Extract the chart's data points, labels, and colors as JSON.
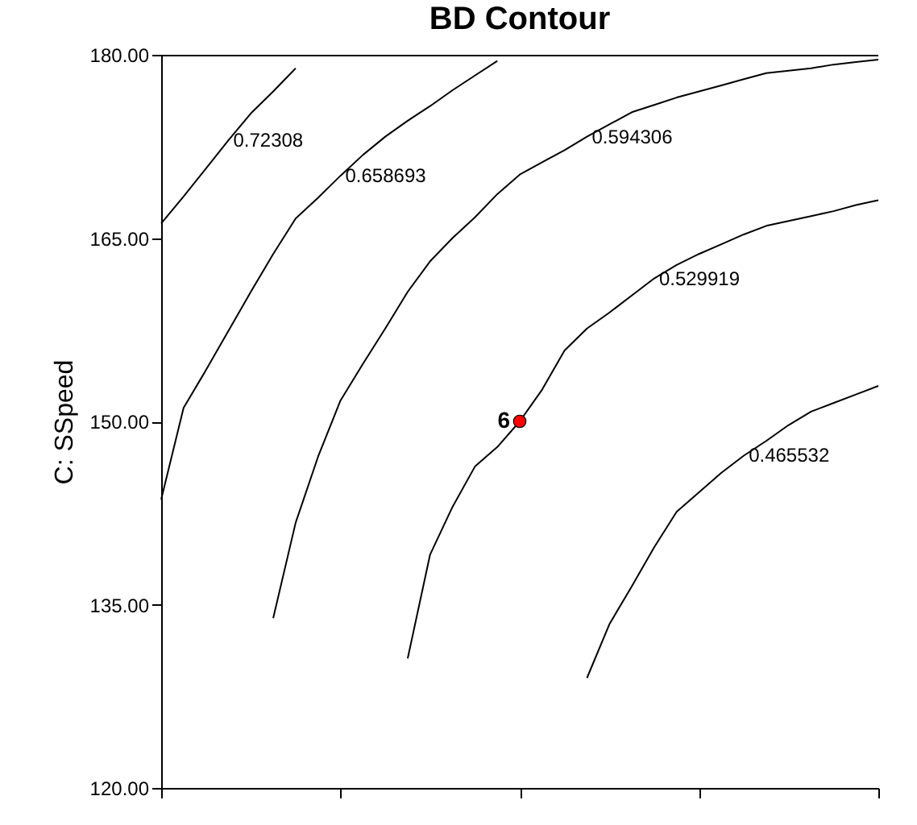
{
  "chart_data": {
    "type": "line",
    "title": "BD Contour",
    "annotations": [
      "6"
    ],
    "ylabel": "C: SSpeed",
    "tick_labels": "y",
    "categories": [
      null,
      null,
      null,
      null,
      null,
      null,
      null,
      null,
      null,
      null,
      null,
      null,
      null,
      null,
      null,
      null,
      null,
      null,
      null,
      null,
      null,
      null,
      null,
      null,
      null,
      null,
      null,
      null,
      null,
      null,
      null,
      null,
      null
    ],
    "ylim": [
      120,
      180
    ],
    "yticks": [
      {
        "value": 120,
        "label": "120.00"
      },
      {
        "value": 135,
        "label": "135.00"
      },
      {
        "value": 150,
        "label": "150.00"
      },
      {
        "value": 165,
        "label": "165.00"
      },
      {
        "value": 180,
        "label": "180.00"
      }
    ],
    "line_style": "solid",
    "marker": "none",
    "series": [
      {
        "name": "0.72308",
        "color": "#000000",
        "values": [
          166.2,
          168.4,
          170.7,
          173.0,
          175.2,
          177.0,
          178.9,
          null,
          null,
          null,
          null,
          null,
          null,
          null,
          null,
          null,
          null,
          null,
          null,
          null,
          null,
          null,
          null,
          null,
          null,
          null,
          null,
          null,
          null,
          null,
          null,
          null,
          null
        ]
      },
      {
        "name": "0.658693",
        "color": "#000000",
        "values": [
          143.6,
          151.1,
          154.2,
          157.4,
          160.6,
          163.7,
          166.6,
          168.3,
          170.1,
          171.8,
          173.3,
          174.6,
          175.8,
          177.1,
          178.3,
          179.5,
          null,
          null,
          null,
          null,
          null,
          null,
          null,
          null,
          null,
          null,
          null,
          null,
          null,
          null,
          null,
          null,
          null
        ]
      },
      {
        "name": "0.594306",
        "color": "#000000",
        "values": [
          null,
          null,
          null,
          null,
          null,
          133.9,
          141.7,
          147.1,
          151.7,
          154.7,
          157.6,
          160.6,
          163.1,
          165.0,
          166.7,
          168.6,
          170.2,
          171.2,
          172.2,
          173.3,
          174.3,
          175.3,
          175.9,
          176.5,
          177.0,
          177.5,
          178.0,
          178.5,
          178.7,
          178.9,
          179.2,
          179.4,
          179.6
        ]
      },
      {
        "name": "0.529919",
        "color": "#000000",
        "values": [
          null,
          null,
          null,
          null,
          null,
          null,
          null,
          null,
          null,
          null,
          null,
          130.6,
          139.1,
          143.0,
          146.3,
          147.9,
          150.0,
          152.6,
          155.8,
          157.6,
          158.9,
          160.3,
          161.7,
          162.8,
          163.7,
          164.5,
          165.3,
          166.0,
          166.4,
          166.8,
          167.2,
          167.7,
          168.1
        ]
      },
      {
        "name": "0.465532",
        "color": "#000000",
        "values": [
          null,
          null,
          null,
          null,
          null,
          null,
          null,
          null,
          null,
          null,
          null,
          null,
          null,
          null,
          null,
          null,
          null,
          null,
          null,
          129.0,
          133.4,
          136.5,
          139.7,
          142.6,
          144.2,
          145.8,
          147.2,
          148.4,
          149.7,
          150.8,
          151.5,
          152.2,
          152.9
        ]
      },
      {
        "type": "scatter",
        "marker": "circle",
        "color": "#ff0000",
        "values": [
          null,
          null,
          null,
          null,
          null,
          null,
          null,
          null,
          null,
          null,
          null,
          null,
          null,
          null,
          null,
          null,
          150.0,
          null,
          null,
          null,
          null,
          null,
          null,
          null,
          null,
          null,
          null,
          null,
          null,
          null,
          null,
          null,
          null
        ]
      }
    ]
  }
}
